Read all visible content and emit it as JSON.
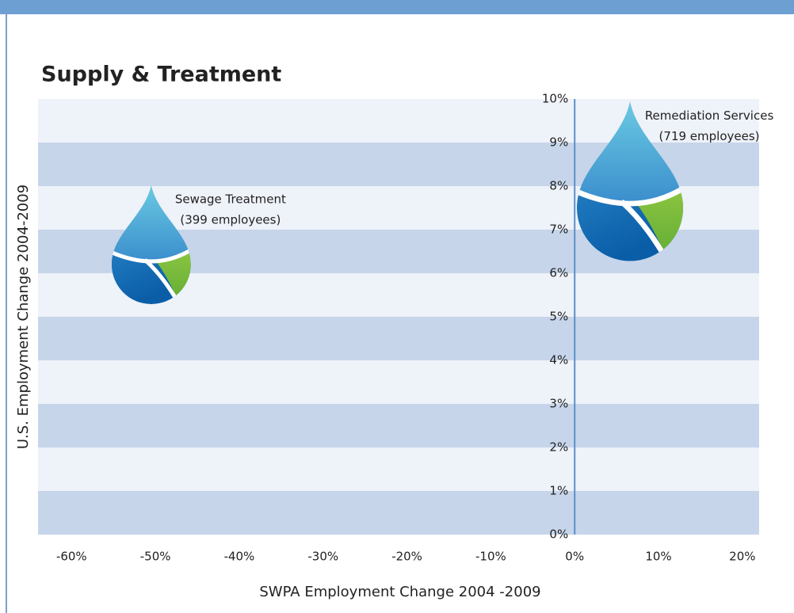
{
  "chart_data": {
    "type": "bubble",
    "title": "Supply & Treatment",
    "xlabel": "SWPA Employment Change 2004 -2009",
    "ylabel": "U.S. Employment Change 2004-2009",
    "points": [
      {
        "name": "Sewage Treatment",
        "label": "(399 employees)",
        "x": -50.5,
        "y": 6.2,
        "size": 399
      },
      {
        "name": "Remediation Services",
        "label": "(719 employees)",
        "x": 6.6,
        "y": 7.5,
        "size": 719
      }
    ],
    "xlim": [
      -64,
      22
    ],
    "ylim": [
      0,
      10
    ],
    "xticks": [
      {
        "value": -60,
        "label": "-60%"
      },
      {
        "value": -50,
        "label": "-50%"
      },
      {
        "value": -40,
        "label": "-40%"
      },
      {
        "value": -30,
        "label": "-30%"
      },
      {
        "value": -20,
        "label": "-20%"
      },
      {
        "value": -10,
        "label": "-10%"
      },
      {
        "value": 0,
        "label": "0%"
      },
      {
        "value": 10,
        "label": "10%"
      },
      {
        "value": 20,
        "label": "20%"
      }
    ],
    "yticks": [
      {
        "value": 0,
        "label": "0%"
      },
      {
        "value": 1,
        "label": "1%"
      },
      {
        "value": 2,
        "label": "2%"
      },
      {
        "value": 3,
        "label": "3%"
      },
      {
        "value": 4,
        "label": "4%"
      },
      {
        "value": 5,
        "label": "5%"
      },
      {
        "value": 6,
        "label": "6%"
      },
      {
        "value": 7,
        "label": "7%"
      },
      {
        "value": 8,
        "label": "8%"
      },
      {
        "value": 9,
        "label": "9%"
      },
      {
        "value": 10,
        "label": "10%"
      }
    ],
    "grid": true
  }
}
